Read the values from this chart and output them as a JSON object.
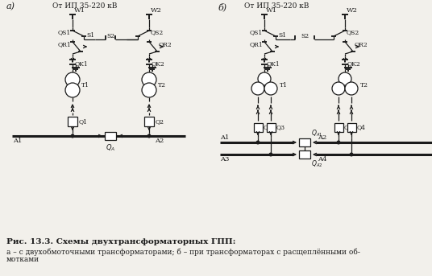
{
  "title_a": "а)",
  "title_b": "б)",
  "top_label": "От ИП 35-220 кВ",
  "caption_bold": "Рис. 13.3. Схемы двухтрансформаторных ГПП:",
  "caption_line2": "а – с двухобмоточными трансформаторами; б – при трансформаторах с расщеплёнными об-",
  "caption_line3": "мотками",
  "bg_color": "#f2f0eb",
  "lc": "#1a1a1a",
  "lw": 0.9
}
